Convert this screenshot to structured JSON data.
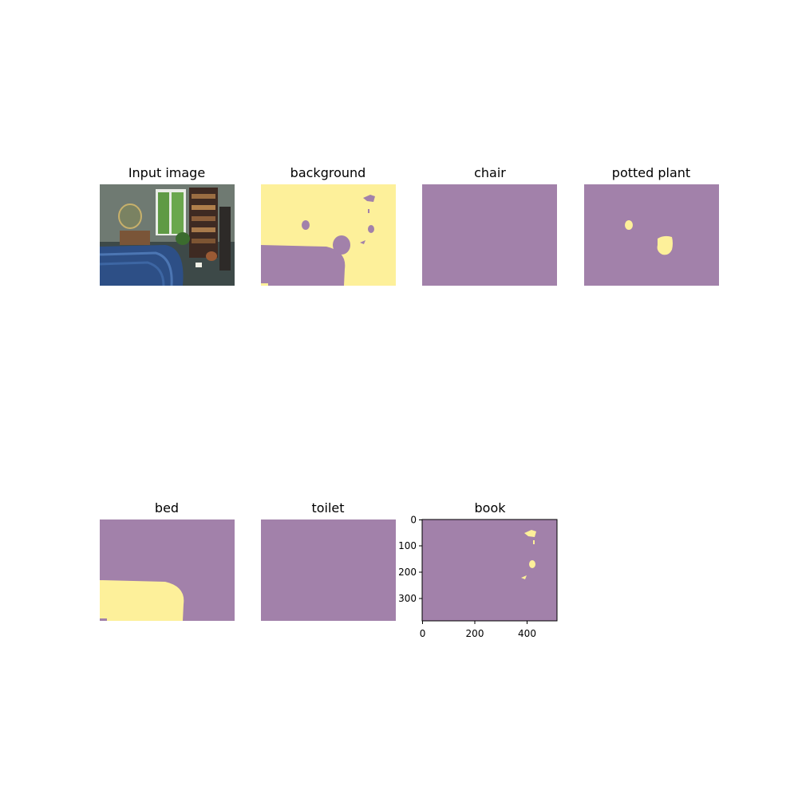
{
  "colors": {
    "mask_bg": "#a281aa",
    "mask_fg": "#fdf09a"
  },
  "panels": [
    {
      "title": "Input image"
    },
    {
      "title": "background"
    },
    {
      "title": "chair"
    },
    {
      "title": "potted plant"
    },
    {
      "title": "bed"
    },
    {
      "title": "toilet"
    },
    {
      "title": "book"
    }
  ],
  "book_axes": {
    "x_ticks": [
      "0",
      "200",
      "400"
    ],
    "y_ticks": [
      "0",
      "100",
      "200",
      "300"
    ]
  }
}
